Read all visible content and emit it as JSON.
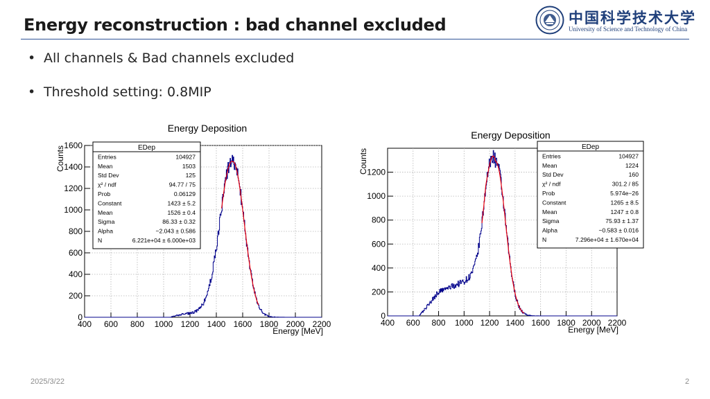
{
  "slide": {
    "title": "Energy reconstruction : bad channel excluded",
    "bullets": [
      "All channels & Bad channels excluded",
      "Threshold setting: 0.8MIP"
    ],
    "footer_date": "2025/3/22",
    "page_number": "2"
  },
  "logo": {
    "cn_text": "中国科学技术大学",
    "en_text": "University of Science and Technology of China"
  },
  "colors": {
    "histogram": "#00008b",
    "fit": "#e8000b",
    "grid": "#b4b4b4",
    "title_rule": "#2f5496",
    "logo": "#1f3f7a"
  },
  "chart_data": [
    {
      "type": "histogram",
      "title": "Energy Deposition",
      "xlabel": "Energy [MeV]",
      "ylabel": "Counts",
      "xlim": [
        400,
        2200
      ],
      "ylim": [
        0,
        1600
      ],
      "xticks": [
        "400",
        "600",
        "800",
        "1000",
        "1200",
        "1400",
        "1600",
        "1800",
        "2000",
        "2200"
      ],
      "yticks": [
        "0",
        "200",
        "400",
        "600",
        "800",
        "1000",
        "1200",
        "1400",
        "1600"
      ],
      "grid": true,
      "peak": 1526,
      "amplitude": 1450,
      "sigma_left": 95,
      "sigma_right": 86,
      "left_tail": {
        "level": 30,
        "range": [
          1150,
          1470
        ]
      },
      "baseline_start": 1050,
      "fit_range": [
        1440,
        1720
      ],
      "stats": {
        "name": "EDep",
        "rows": [
          [
            "Entries",
            "104927"
          ],
          [
            "Mean",
            "1503"
          ],
          [
            "Std Dev",
            "125"
          ],
          [
            "χ² / ndf",
            "94.77 / 75"
          ],
          [
            "Prob",
            "0.06129"
          ],
          [
            "Constant",
            "1423 ± 5.2"
          ],
          [
            "Mean",
            "1526 ± 0.4"
          ],
          [
            "Sigma",
            "86.33 ± 0.32"
          ],
          [
            "Alpha",
            "−2.043 ± 0.586"
          ],
          [
            "N",
            "6.221e+04 ± 6.000e+03"
          ]
        ]
      }
    },
    {
      "type": "histogram",
      "title": "Energy Deposition",
      "xlabel": "Energy [MeV]",
      "ylabel": "Counts",
      "xlim": [
        400,
        2200
      ],
      "ylim": [
        0,
        1400
      ],
      "xticks": [
        "400",
        "600",
        "800",
        "1000",
        "1200",
        "1400",
        "1600",
        "1800",
        "2000",
        "2200"
      ],
      "yticks": [
        "0",
        "200",
        "400",
        "600",
        "800",
        "1000",
        "1200"
      ],
      "grid": true,
      "peak": 1247,
      "amplitude": 1290,
      "sigma_left": 72,
      "sigma_right": 78,
      "left_tail": {
        "level": 200,
        "range": [
          800,
          1170
        ]
      },
      "baseline_start": 650,
      "fit_range": [
        1140,
        1470
      ],
      "stats": {
        "name": "EDep",
        "rows": [
          [
            "Entries",
            "104927"
          ],
          [
            "Mean",
            "1224"
          ],
          [
            "Std Dev",
            "160"
          ],
          [
            "χ² / ndf",
            "301.2 / 85"
          ],
          [
            "Prob",
            "5.974e−26"
          ],
          [
            "Constant",
            "1265 ± 8.5"
          ],
          [
            "Mean",
            "1247 ± 0.8"
          ],
          [
            "Sigma",
            "75.93 ± 1.37"
          ],
          [
            "Alpha",
            "−0.583 ± 0.016"
          ],
          [
            "N",
            "7.296e+04 ± 1.670e+04"
          ]
        ]
      }
    }
  ]
}
